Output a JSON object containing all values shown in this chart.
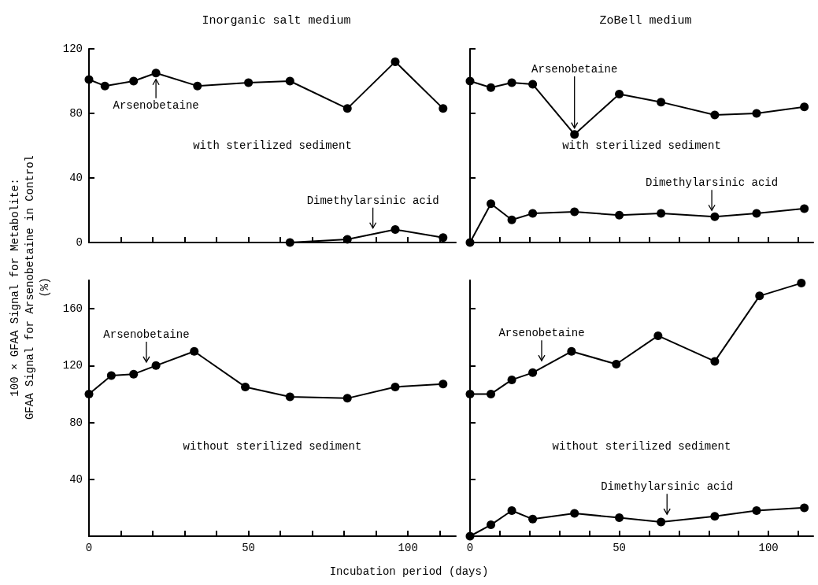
{
  "chart_data": [
    {
      "type": "line",
      "title": "Inorganic salt medium",
      "ylabel": "100 × GFAA Signal for Metabolite:\nGFAA Signal for Arsenobetaine in Control\n(%)",
      "marker": "circle",
      "line_style": "solid",
      "tick_labels": "y",
      "xlim": [
        0,
        115
      ],
      "xticks": [
        0,
        {
          "value": 10,
          "label": null
        },
        {
          "value": 20,
          "label": null
        },
        {
          "value": 30,
          "label": null
        },
        {
          "value": 40,
          "label": null
        },
        50,
        {
          "value": 60,
          "label": null
        },
        {
          "value": 70,
          "label": null
        },
        {
          "value": 80,
          "label": null
        },
        {
          "value": 90,
          "label": null
        },
        100,
        {
          "value": 110,
          "label": null
        }
      ],
      "ylim": [
        0,
        120
      ],
      "yticks": [
        0,
        40,
        80,
        120
      ],
      "series": [
        {
          "color": "#000000",
          "x": [
            0,
            5,
            14,
            21,
            34,
            50,
            63,
            81,
            96,
            111
          ],
          "values": [
            101,
            97,
            100,
            105,
            97,
            99,
            100,
            83,
            112,
            83
          ]
        },
        {
          "color": "#000000",
          "x": [
            63,
            81,
            96,
            111
          ],
          "values": [
            0,
            2,
            8,
            3
          ]
        }
      ],
      "annotations": [
        {
          "text": "Arsenobetaine",
          "x": 21,
          "y": 105
        },
        {
          "text": "Dimethylarsinic acid",
          "x": 89,
          "y": 5
        },
        "with sterilized sediment"
      ]
    },
    {
      "type": "line",
      "title": "ZoBell medium",
      "marker": "circle",
      "line_style": "solid",
      "tick_labels": false,
      "xlim": [
        0,
        115
      ],
      "xticks": [
        0,
        {
          "value": 10,
          "label": null
        },
        {
          "value": 20,
          "label": null
        },
        {
          "value": 30,
          "label": null
        },
        {
          "value": 40,
          "label": null
        },
        50,
        {
          "value": 60,
          "label": null
        },
        {
          "value": 70,
          "label": null
        },
        {
          "value": 80,
          "label": null
        },
        {
          "value": 90,
          "label": null
        },
        100,
        {
          "value": 110,
          "label": null
        }
      ],
      "ylim": [
        0,
        120
      ],
      "yticks": [
        0,
        40,
        80,
        120
      ],
      "series": [
        {
          "color": "#000000",
          "x": [
            0,
            7,
            14,
            21,
            35,
            50,
            64,
            82,
            96,
            112
          ],
          "values": [
            100,
            96,
            99,
            98,
            67,
            92,
            87,
            79,
            80,
            84
          ]
        },
        {
          "color": "#000000",
          "x": [
            0,
            7,
            14,
            21,
            35,
            50,
            64,
            82,
            96,
            112
          ],
          "values": [
            0,
            24,
            14,
            18,
            19,
            17,
            18,
            16,
            18,
            21
          ]
        }
      ],
      "annotations": [
        {
          "text": "Arsenobetaine",
          "x": 35,
          "y": 67
        },
        {
          "text": "Dimethylarsinic acid",
          "x": 81,
          "y": 16
        },
        "with sterilized sediment"
      ]
    },
    {
      "type": "line",
      "xlabel": "Incubation period (days)",
      "marker": "circle",
      "line_style": "solid",
      "xlim": [
        0,
        115
      ],
      "xticks": [
        0,
        {
          "value": 10,
          "label": null
        },
        {
          "value": 20,
          "label": null
        },
        {
          "value": 30,
          "label": null
        },
        {
          "value": 40,
          "label": null
        },
        50,
        {
          "value": 60,
          "label": null
        },
        {
          "value": 70,
          "label": null
        },
        {
          "value": 80,
          "label": null
        },
        {
          "value": 90,
          "label": null
        },
        100,
        {
          "value": 110,
          "label": null
        }
      ],
      "ylim": [
        0,
        180
      ],
      "yticks": [
        40,
        80,
        120,
        160
      ],
      "series": [
        {
          "color": "#000000",
          "x": [
            0,
            7,
            14,
            21,
            33,
            49,
            63,
            81,
            96,
            111
          ],
          "values": [
            100,
            113,
            114,
            120,
            130,
            105,
            98,
            97,
            105,
            107
          ]
        }
      ],
      "annotations": [
        {
          "text": "Arsenobetaine",
          "x": 18,
          "y": 118
        },
        "without sterilized sediment"
      ]
    },
    {
      "type": "line",
      "marker": "circle",
      "line_style": "solid",
      "tick_labels": "x",
      "xlim": [
        0,
        115
      ],
      "xticks": [
        0,
        {
          "value": 10,
          "label": null
        },
        {
          "value": 20,
          "label": null
        },
        {
          "value": 30,
          "label": null
        },
        {
          "value": 40,
          "label": null
        },
        50,
        {
          "value": 60,
          "label": null
        },
        {
          "value": 70,
          "label": null
        },
        {
          "value": 80,
          "label": null
        },
        {
          "value": 90,
          "label": null
        },
        100,
        {
          "value": 110,
          "label": null
        }
      ],
      "ylim": [
        0,
        180
      ],
      "yticks": [
        40,
        80,
        120,
        160
      ],
      "series": [
        {
          "color": "#000000",
          "x": [
            0,
            7,
            14,
            21,
            34,
            49,
            63,
            82,
            97,
            111
          ],
          "values": [
            100,
            100,
            110,
            115,
            130,
            121,
            141,
            123,
            169,
            178
          ]
        },
        {
          "color": "#000000",
          "x": [
            0,
            7,
            14,
            21,
            35,
            50,
            64,
            82,
            96,
            112
          ],
          "values": [
            0,
            8,
            18,
            12,
            16,
            13,
            10,
            14,
            18,
            20
          ]
        }
      ],
      "annotations": [
        {
          "text": "Arsenobetaine",
          "x": 24,
          "y": 119
        },
        {
          "text": "Dimethylarsinic acid",
          "x": 66,
          "y": 11
        },
        "without sterilized sediment"
      ]
    }
  ]
}
